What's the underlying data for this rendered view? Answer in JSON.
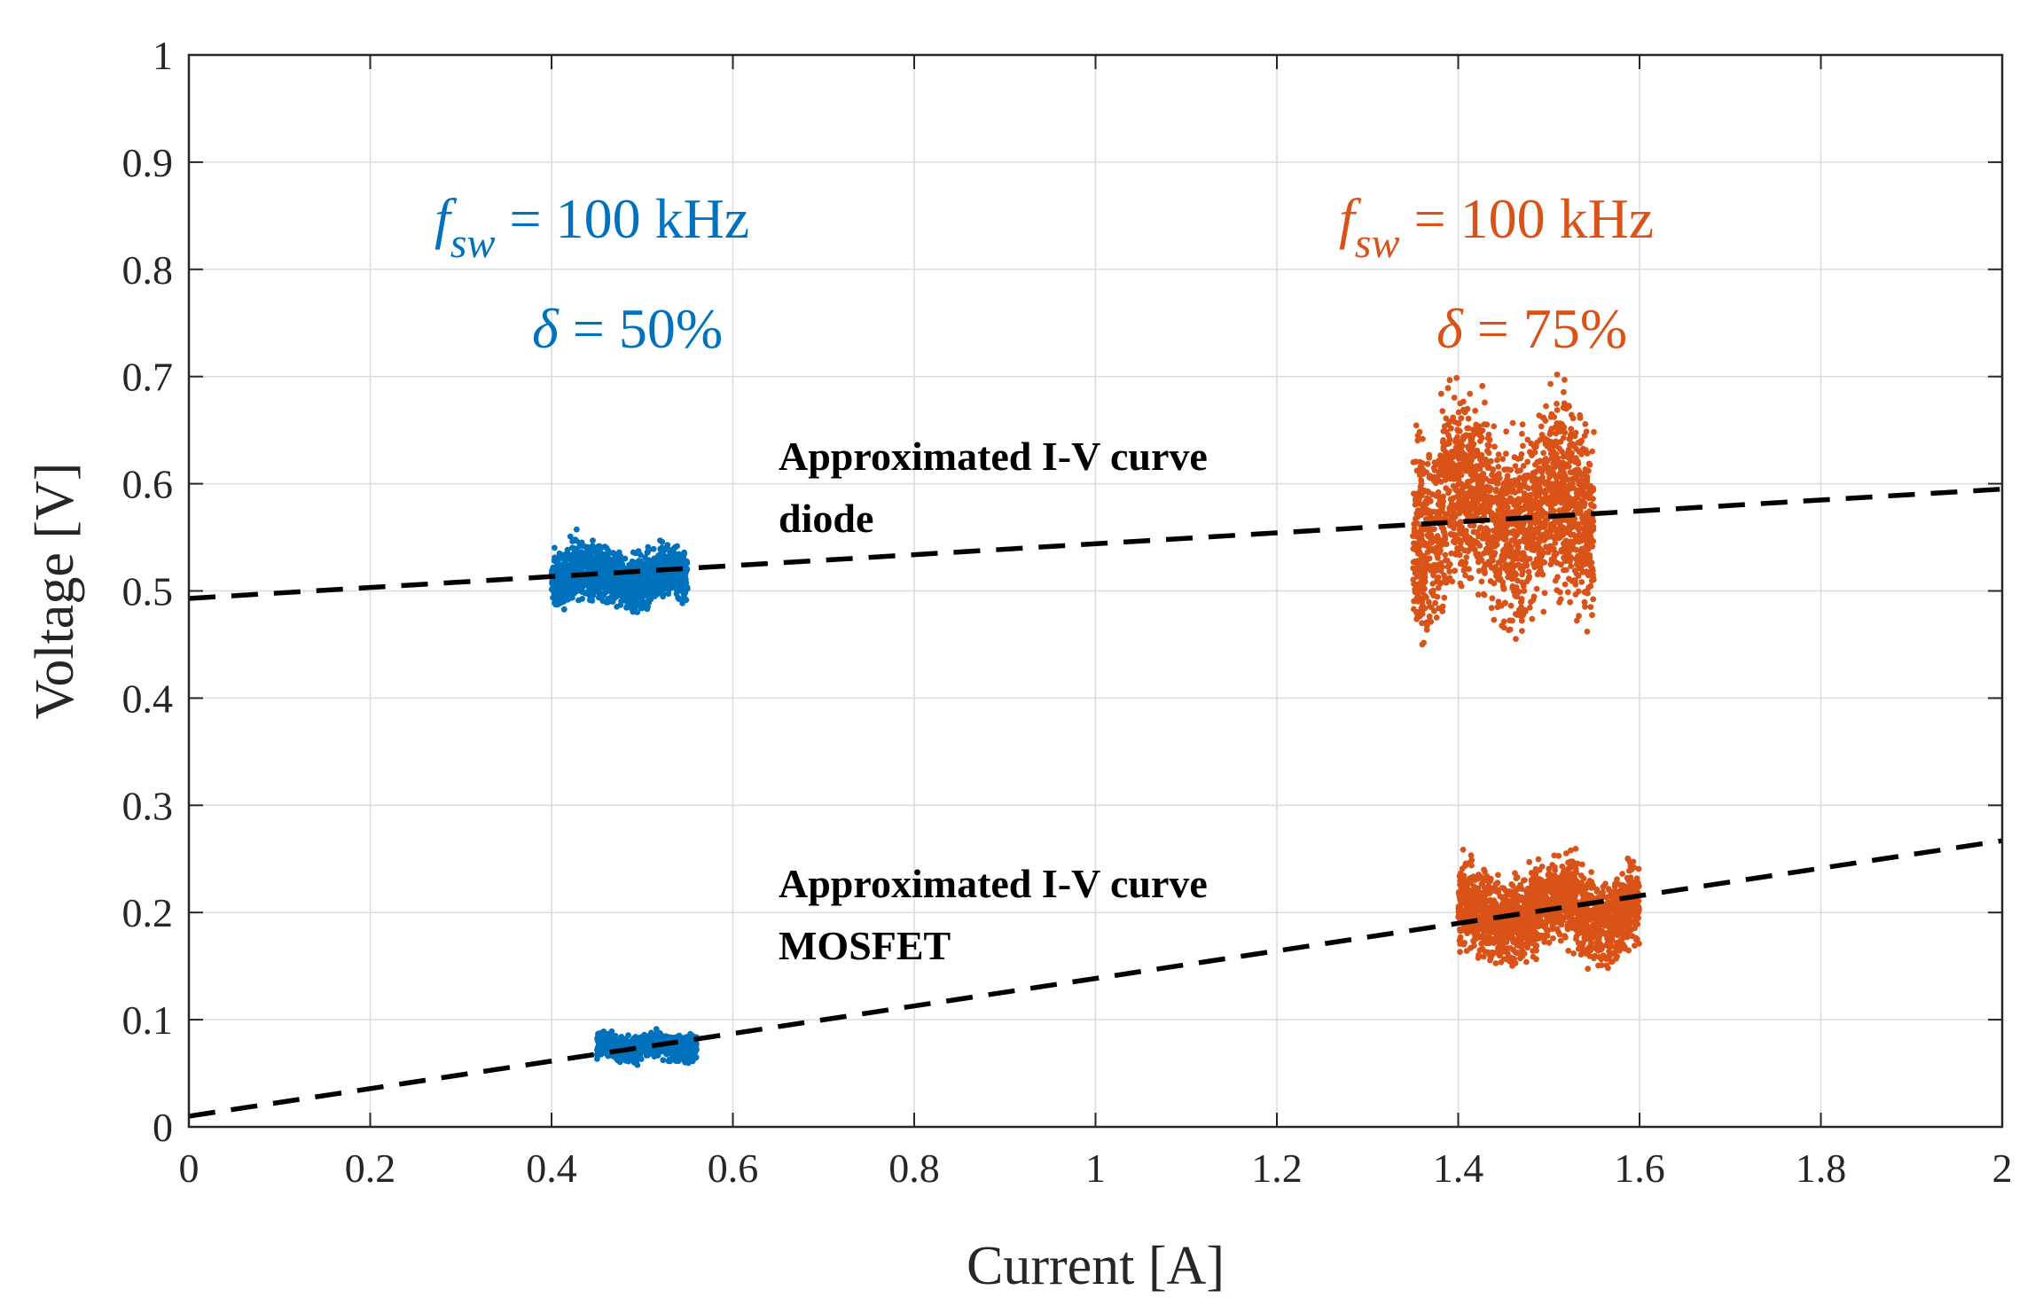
{
  "chart_data": {
    "type": "scatter",
    "title": "",
    "xlabel": "Current [A]",
    "ylabel": "Voltage [V]",
    "xlim": [
      0,
      2
    ],
    "ylim": [
      0,
      1
    ],
    "grid": true,
    "x_ticks": [
      "0",
      "0.2",
      "0.4",
      "0.6",
      "0.8",
      "1",
      "1.2",
      "1.4",
      "1.6",
      "1.8",
      "2"
    ],
    "y_ticks": [
      "0",
      "0.1",
      "0.2",
      "0.3",
      "0.4",
      "0.5",
      "0.6",
      "0.7",
      "0.8",
      "0.9",
      "1"
    ],
    "colors": {
      "blue": "#0072BD",
      "orange": "#D95319",
      "fit": "#000000"
    },
    "conditions": [
      {
        "color": "#0072BD",
        "f_symbol": "f",
        "f_sub": "sw",
        "f_text": " = 100 kHz",
        "d_symbol": "δ",
        "d_text": " = 50%"
      },
      {
        "color": "#D95319",
        "f_symbol": "f",
        "f_sub": "sw",
        "f_text": " = 100 kHz",
        "d_symbol": "δ",
        "d_text": " = 75%"
      }
    ],
    "annotations": [
      {
        "line1": "Approximated I-V curve",
        "line2": "diode"
      },
      {
        "line1": "Approximated I-V curve",
        "line2": "MOSFET"
      }
    ],
    "fit_lines": [
      {
        "name": "diode",
        "x": [
          0,
          2
        ],
        "y": [
          0.493,
          0.595
        ]
      },
      {
        "name": "MOSFET",
        "x": [
          0,
          2
        ],
        "y": [
          0.01,
          0.267
        ]
      }
    ],
    "scatter_clusters": [
      {
        "name": "diode δ=50%",
        "color": "#0072BD",
        "x_range": [
          0.4,
          0.55
        ],
        "y_center": 0.513,
        "y_spread": 0.025,
        "peak": {
          "x": 0.425,
          "y": 0.57
        },
        "points": 1500
      },
      {
        "name": "MOSFET δ=50%",
        "color": "#0072BD",
        "x_range": [
          0.45,
          0.56
        ],
        "y_center": 0.075,
        "y_spread": 0.012,
        "points": 900
      },
      {
        "name": "diode δ=75%",
        "color": "#D95319",
        "x_range": [
          1.35,
          1.55
        ],
        "y_center": 0.57,
        "y_spread": 0.09,
        "peak": {
          "x": 1.39,
          "y": 0.665
        },
        "points": 2000
      },
      {
        "name": "MOSFET δ=75%",
        "color": "#D95319",
        "x_range": [
          1.4,
          1.6
        ],
        "y_center": 0.2,
        "y_spread": 0.04,
        "peak": {
          "x": 1.525,
          "y": 0.255
        },
        "points": 1800
      }
    ]
  }
}
